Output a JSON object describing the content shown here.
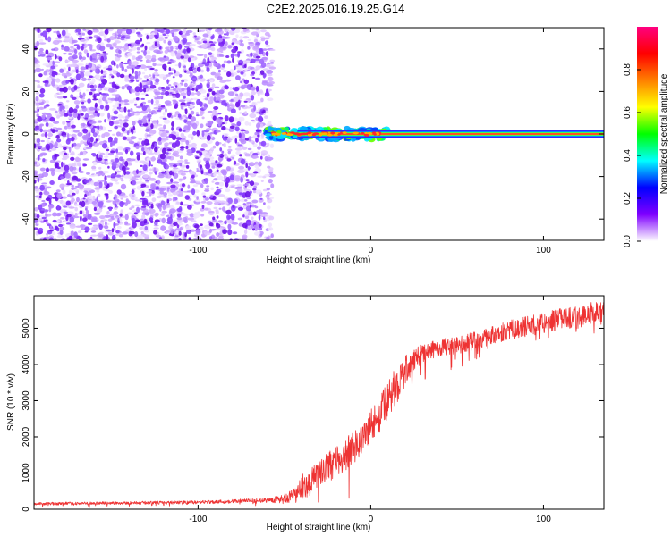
{
  "title": "C2E2.2025.016.19.25.G14",
  "chart_data": [
    {
      "type": "heatmap",
      "xlabel": "Height of straight line (km)",
      "ylabel": "Frequency (Hz)",
      "xlim": [
        -195,
        135
      ],
      "ylim": [
        -50,
        50
      ],
      "xticks": [
        -100,
        0,
        100
      ],
      "yticks": [
        -40,
        -20,
        0,
        20,
        40
      ],
      "grid": false,
      "noise_region_x": [
        -195,
        -60
      ],
      "signal": {
        "frequency": 0,
        "start_x": -60,
        "end_x": 135,
        "spread_region_x": [
          -60,
          10
        ]
      },
      "colorbar": {
        "label": "Normalized spectral amplitude",
        "range": [
          0,
          1
        ],
        "ticks": [
          0.0,
          0.2,
          0.4,
          0.6,
          0.8
        ],
        "tick_labels": [
          "0.0",
          "0.2",
          "0.4",
          "0.6",
          "0.8"
        ],
        "colors": [
          "#ffffff",
          "#7f00ff",
          "#0000ff",
          "#00ffff",
          "#00ff00",
          "#ffff00",
          "#ff8000",
          "#ff0000",
          "#ff0080"
        ]
      }
    },
    {
      "type": "line",
      "xlabel": "Height of straight line (km)",
      "ylabel": "SNR (10 * v/v)",
      "xlim": [
        -195,
        135
      ],
      "ylim": [
        0,
        5900
      ],
      "xticks": [
        -100,
        0,
        100
      ],
      "yticks": [
        0,
        1000,
        2000,
        3000,
        4000,
        5000
      ],
      "grid": false,
      "series": [
        {
          "color": "#ee3333",
          "x": [
            -195,
            -150,
            -100,
            -60,
            -48,
            -43,
            -40,
            -35,
            -30,
            -25,
            -20,
            -15,
            -10,
            -5,
            0,
            5,
            10,
            15,
            20,
            25,
            30,
            35,
            40,
            50,
            60,
            70,
            80,
            90,
            100,
            110,
            120,
            130,
            135
          ],
          "y": [
            150,
            170,
            190,
            250,
            300,
            400,
            600,
            750,
            1000,
            1150,
            1300,
            1500,
            1700,
            1950,
            2300,
            2600,
            3000,
            3450,
            3800,
            4150,
            4300,
            4400,
            4450,
            4550,
            4650,
            4800,
            4950,
            5050,
            5150,
            5250,
            5300,
            5450,
            5400
          ],
          "noise": [
            40,
            40,
            45,
            60,
            150,
            250,
            350,
            380,
            400,
            420,
            420,
            440,
            460,
            460,
            480,
            500,
            520,
            520,
            440,
            300,
            260,
            240,
            240,
            240,
            250,
            260,
            270,
            280,
            290,
            300,
            310,
            320,
            320
          ]
        }
      ]
    }
  ]
}
